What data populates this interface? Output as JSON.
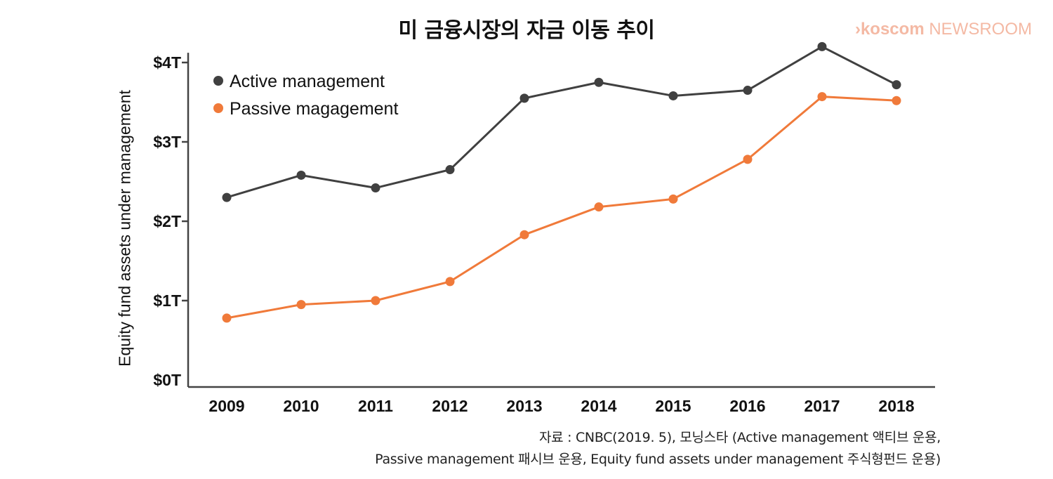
{
  "title": "미 금융시장의 자금 이동 추이",
  "brand": {
    "arrow": "›",
    "name": "koscom",
    "suffix": "NEWSROOM"
  },
  "source": {
    "line1": "자료 : CNBC(2019. 5), 모닝스타 (Active management 액티브 운용,",
    "line2": "Passive management 패시브 운용, Equity fund assets under management 주식형펀드 운용)"
  },
  "colors": {
    "active": "#404040",
    "passive": "#f07a3a",
    "axis": "#444444"
  },
  "chart_data": {
    "type": "line",
    "title": "미 금융시장의 자금 이동 추이",
    "ylabel": "Equity fund assets under management",
    "xlabel": "",
    "x": [
      "2009",
      "2010",
      "2011",
      "2012",
      "2013",
      "2014",
      "2015",
      "2016",
      "2017",
      "2018"
    ],
    "yticks": [
      {
        "value": 0,
        "label": "$0T"
      },
      {
        "value": 1,
        "label": "$1T"
      },
      {
        "value": 2,
        "label": "$2T"
      },
      {
        "value": 3,
        "label": "$3T"
      },
      {
        "value": 4,
        "label": "$4T"
      }
    ],
    "ylim": [
      0,
      4.3
    ],
    "grid": false,
    "legend": "top-left",
    "series": [
      {
        "name": "Active management",
        "color": "#404040",
        "values": [
          2.3,
          2.58,
          2.42,
          2.65,
          3.55,
          3.75,
          3.58,
          3.65,
          4.2,
          3.72
        ]
      },
      {
        "name": "Passive magagement",
        "color": "#f07a3a",
        "values": [
          0.78,
          0.95,
          1.0,
          1.24,
          1.83,
          2.18,
          2.28,
          2.78,
          3.57,
          3.52
        ]
      }
    ]
  }
}
